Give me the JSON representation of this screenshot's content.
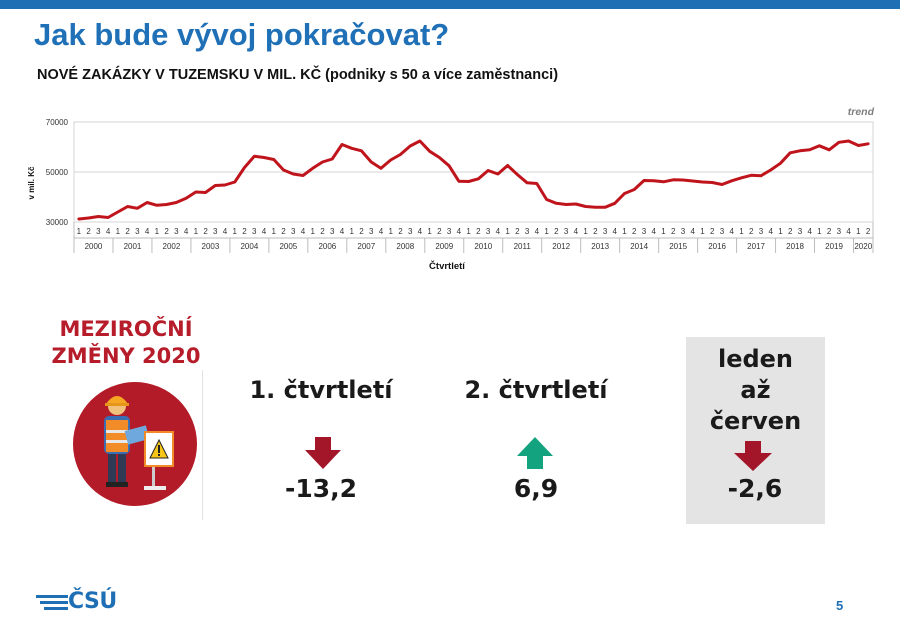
{
  "header": {
    "title": "Jak bude vývoj pokračovat?",
    "subtitle": "NOVÉ ZAKÁZKY V TUZEMSKU V MIL. KČ (podniky s 50 a více zaměstnanci)"
  },
  "chart_data": {
    "type": "line",
    "title": "",
    "annotation": "trend",
    "ylabel": "v mil. Kč",
    "xlabel": "Čtvrtletí",
    "ylim": [
      30000,
      70000
    ],
    "yticks": [
      30000,
      50000,
      70000
    ],
    "quarter_labels": [
      "1",
      "2",
      "3",
      "4"
    ],
    "years": [
      "2000",
      "2001",
      "2002",
      "2003",
      "2004",
      "2005",
      "2006",
      "2007",
      "2008",
      "2009",
      "2010",
      "2011",
      "2012",
      "2013",
      "2014",
      "2015",
      "2016",
      "2017",
      "2018",
      "2019",
      "2020"
    ],
    "grid": true,
    "color": "#c0141c",
    "series": [
      {
        "values": [
          31200,
          31600,
          32200,
          31800,
          34000,
          36200,
          35500,
          37800,
          36700,
          37000,
          37800,
          39500,
          42000,
          41800,
          44600,
          44800,
          46000,
          51800,
          56300,
          55800,
          55000,
          50800,
          49200,
          48600,
          51500,
          54000,
          55200,
          61000,
          59500,
          58500,
          54000,
          51500,
          54800,
          57000,
          60400,
          62400,
          58300,
          55800,
          52500,
          46300,
          46200,
          47300,
          50600,
          49200,
          52600,
          49000,
          45700,
          45400,
          39000,
          37500,
          37000,
          37200,
          36200,
          35900,
          35900,
          37500,
          41400,
          43000,
          46600,
          46500,
          46100,
          46900,
          46800,
          46400,
          46000,
          45800,
          45000,
          46500,
          47700,
          48700,
          48500,
          50800,
          53500,
          57700,
          58500,
          58900,
          60500,
          58900,
          61900,
          62400,
          60600,
          61300
        ]
      }
    ]
  },
  "changes": {
    "heading_line1": "MEZIROČNÍ",
    "heading_line2": "ZMĚNY 2020",
    "q1": {
      "label": "1. čtvrtletí",
      "value": "-13,2",
      "direction": "down"
    },
    "q2": {
      "label": "2. čtvrtletí",
      "value": "6,9",
      "direction": "up"
    },
    "h1": {
      "label_line1": "leden",
      "label_line2": "až",
      "label_line3": "červen",
      "value": "-2,6",
      "direction": "down"
    }
  },
  "colors": {
    "accent_blue": "#1f70b7",
    "line_red": "#c0141c",
    "heading_red": "#b71c2b",
    "arrow_down": "#a3162a",
    "arrow_up": "#14a37f",
    "grey_box": "#e4e4e4"
  },
  "footer": {
    "logo_text": "ČSÚ",
    "page_number": "5"
  }
}
